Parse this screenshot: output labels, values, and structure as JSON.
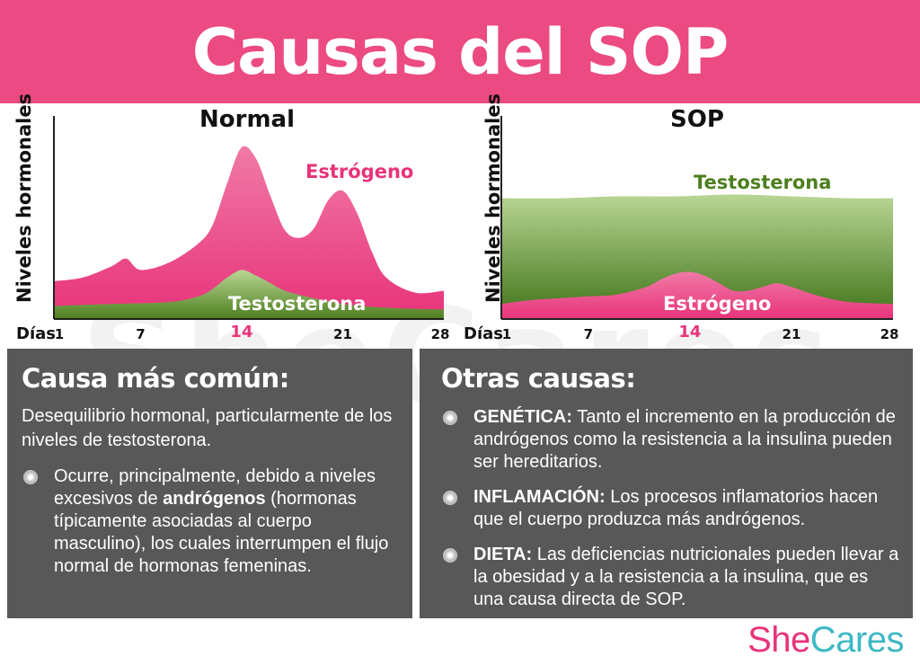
{
  "header": {
    "title": "Causas del SOP"
  },
  "watermark": "SheCares",
  "colors": {
    "header_bg": "#ec4a82",
    "estrogen": "#e8337a",
    "testosterone": "#4e7f1f",
    "panel_bg": "#585858"
  },
  "chart_data": [
    {
      "type": "area",
      "title": "Normal",
      "ylabel": "Niveles hormonales",
      "x_axis_label": "Días",
      "x_ticks": [
        1,
        7,
        14,
        21,
        28
      ],
      "highlight_tick": 14,
      "xlim": [
        1,
        28
      ],
      "ylim": [
        0,
        100
      ],
      "series": [
        {
          "name": "Estrógeno",
          "color": "#e8337a",
          "x": [
            1,
            3,
            5,
            6,
            7,
            9,
            11,
            12,
            13,
            14,
            15,
            16,
            17,
            18,
            19,
            20,
            21,
            22,
            23,
            24,
            26,
            28
          ],
          "values": [
            20,
            22,
            28,
            32,
            26,
            30,
            40,
            50,
            72,
            91,
            85,
            65,
            47,
            43,
            48,
            63,
            68,
            56,
            36,
            22,
            14,
            15
          ]
        },
        {
          "name": "Testosterona",
          "color": "#5a8b2a",
          "x": [
            1,
            5,
            9,
            11,
            12,
            13,
            14,
            15,
            16,
            17,
            19,
            21,
            24,
            28
          ],
          "values": [
            7,
            8,
            9,
            12,
            16,
            22,
            26,
            23,
            19,
            15,
            11,
            8,
            6,
            5
          ]
        }
      ]
    },
    {
      "type": "area",
      "title": "SOP",
      "ylabel": "Niveles hormonales",
      "x_axis_label": "Días",
      "x_ticks": [
        1,
        7,
        14,
        21,
        28
      ],
      "highlight_tick": 14,
      "xlim": [
        1,
        28
      ],
      "ylim": [
        0,
        100
      ],
      "series": [
        {
          "name": "Testosterona",
          "color": "#5a8b2a",
          "x": [
            1,
            5,
            9,
            13,
            17,
            21,
            25,
            28
          ],
          "values": [
            64,
            64,
            65,
            65,
            66,
            65,
            64,
            64
          ]
        },
        {
          "name": "Estrógeno",
          "color": "#e8337a",
          "x": [
            1,
            3,
            5,
            7,
            9,
            11,
            12,
            13,
            14,
            15,
            16,
            17,
            18,
            19,
            20,
            21,
            23,
            25,
            28
          ],
          "values": [
            8,
            10,
            11,
            12,
            13,
            17,
            21,
            24,
            25,
            23,
            19,
            15,
            15,
            17,
            19,
            17,
            12,
            9,
            8
          ]
        }
      ]
    }
  ],
  "left_panel": {
    "heading": "Causa más común:",
    "lead": "Desequilibrio hormonal, particularmente de los niveles de testosterona.",
    "bullet_pre": "Ocurre, principalmente, debido a niveles excesivos de ",
    "bullet_bold": "andrógenos",
    "bullet_post": " (hormonas típicamente asociadas al cuerpo masculino), los cuales interrumpen el flujo normal de hormonas femeninas."
  },
  "right_panel": {
    "heading": "Otras causas:",
    "items": [
      {
        "label": "GENÉTICA:",
        "text": " Tanto el incremento en la producción de andrógenos como la resistencia a la insulina pueden ser hereditarios."
      },
      {
        "label": "INFLAMACIÓN:",
        "text": " Los procesos inflamatorios hacen que el cuerpo produzca más andrógenos."
      },
      {
        "label": "DIETA:",
        "text": " Las deficiencias nutricionales pueden llevar a la obesidad y a la resistencia a la insulina, que es una causa directa de SOP."
      }
    ]
  },
  "logo": {
    "part1": "She",
    "part2": "Cares"
  }
}
